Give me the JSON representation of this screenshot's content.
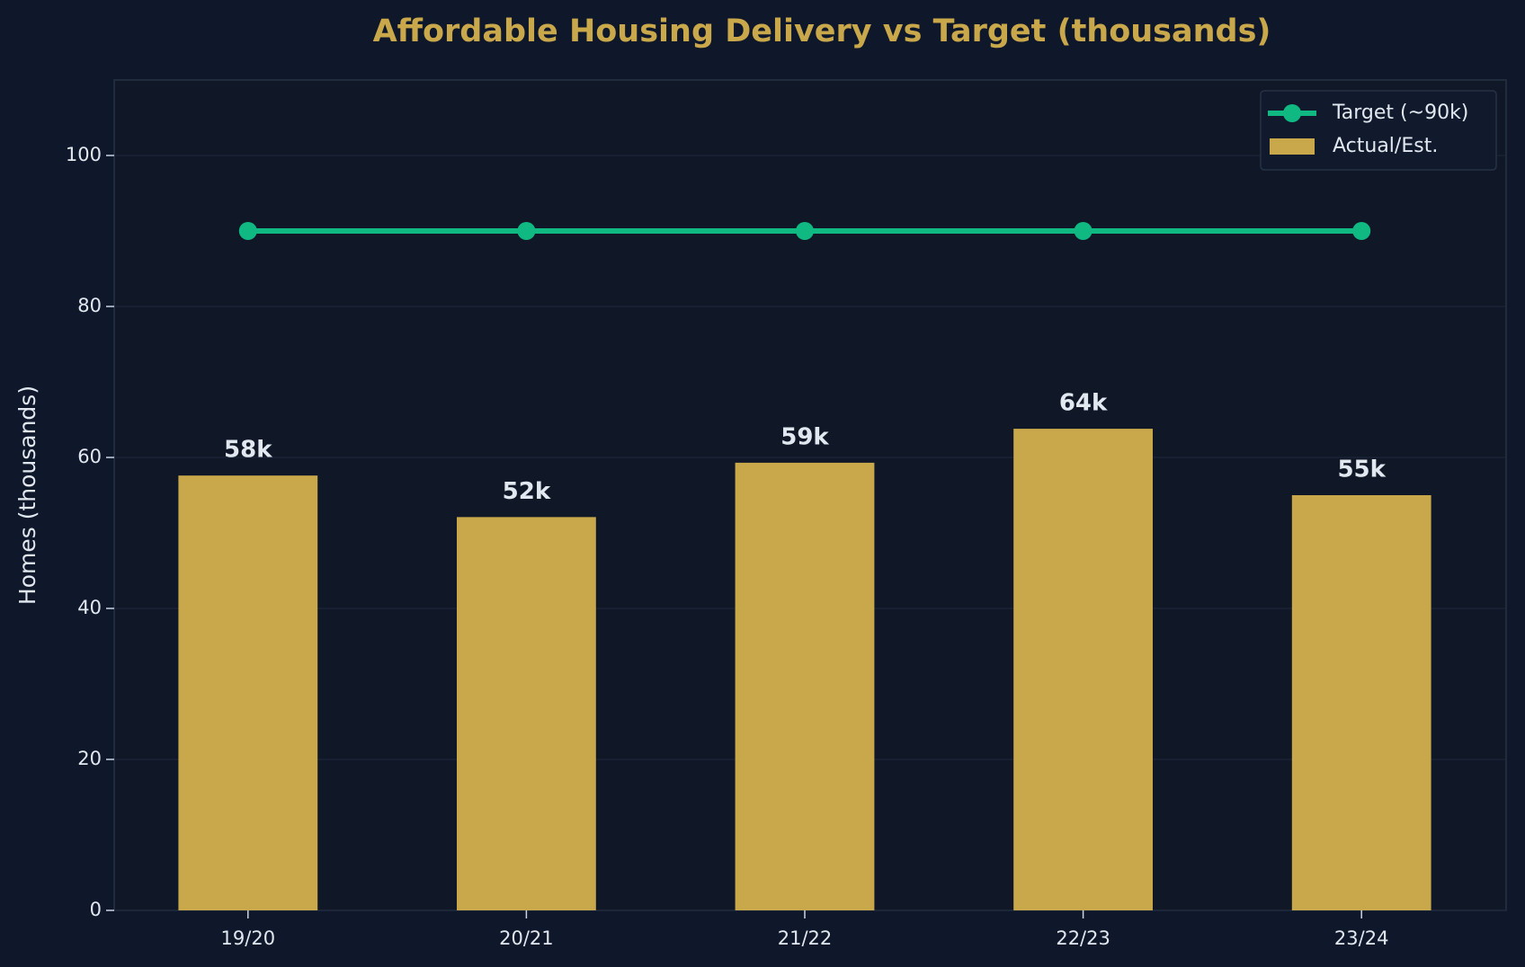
{
  "chart_data": {
    "type": "bar",
    "title": "Affordable Housing Delivery vs Target (thousands)",
    "y_label": "Homes (thousands)",
    "categories": [
      "19/20",
      "20/21",
      "21/22",
      "22/23",
      "23/24"
    ],
    "series": [
      {
        "name": "Target (~90k)",
        "type": "line",
        "color": "#10b981",
        "values": [
          90,
          90,
          90,
          90,
          90
        ]
      },
      {
        "name": "Actual/Est.",
        "type": "bar",
        "color": "#c9a74b",
        "values": [
          57.6,
          52.1,
          59.3,
          63.8,
          55.0
        ],
        "value_labels": [
          "58k",
          "52k",
          "59k",
          "64k",
          "55k"
        ]
      }
    ],
    "ylim": [
      0,
      110
    ],
    "yticks": [
      0,
      20,
      40,
      60,
      80,
      100
    ],
    "grid": true,
    "legend": "upper right"
  }
}
